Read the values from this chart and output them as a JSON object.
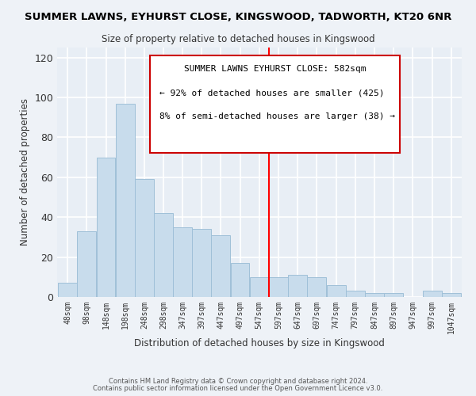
{
  "title": "SUMMER LAWNS, EYHURST CLOSE, KINGSWOOD, TADWORTH, KT20 6NR",
  "subtitle": "Size of property relative to detached houses in Kingswood",
  "xlabel": "Distribution of detached houses by size in Kingswood",
  "ylabel": "Number of detached properties",
  "bar_left_edges": [
    48,
    98,
    148,
    198,
    248,
    298,
    347,
    397,
    447,
    497,
    547,
    597,
    647,
    697,
    747,
    797,
    847,
    897,
    947,
    997,
    1047
  ],
  "bar_heights": [
    7,
    33,
    70,
    97,
    59,
    42,
    35,
    34,
    31,
    17,
    10,
    10,
    11,
    10,
    6,
    3,
    2,
    2,
    0,
    3,
    2
  ],
  "bar_widths": [
    50,
    50,
    50,
    50,
    50,
    49,
    50,
    50,
    50,
    50,
    50,
    50,
    50,
    50,
    50,
    50,
    50,
    50,
    50,
    50,
    50
  ],
  "tick_labels": [
    "48sqm",
    "98sqm",
    "148sqm",
    "198sqm",
    "248sqm",
    "298sqm",
    "347sqm",
    "397sqm",
    "447sqm",
    "497sqm",
    "547sqm",
    "597sqm",
    "647sqm",
    "697sqm",
    "747sqm",
    "797sqm",
    "847sqm",
    "897sqm",
    "947sqm",
    "997sqm",
    "1047sqm"
  ],
  "bar_color": "#c8dcec",
  "bar_edge_color": "#a0c0d8",
  "vline_x": 597,
  "vline_color": "red",
  "ylim": [
    0,
    125
  ],
  "yticks": [
    0,
    20,
    40,
    60,
    80,
    100,
    120
  ],
  "annotation_title": "SUMMER LAWNS EYHURST CLOSE: 582sqm",
  "annotation_line1": "← 92% of detached houses are smaller (425)",
  "annotation_line2": "8% of semi-detached houses are larger (38) →",
  "footer1": "Contains HM Land Registry data © Crown copyright and database right 2024.",
  "footer2": "Contains public sector information licensed under the Open Government Licence v3.0.",
  "background_color": "#eef2f7",
  "grid_color": "white",
  "plot_bg_color": "#e8eef5"
}
